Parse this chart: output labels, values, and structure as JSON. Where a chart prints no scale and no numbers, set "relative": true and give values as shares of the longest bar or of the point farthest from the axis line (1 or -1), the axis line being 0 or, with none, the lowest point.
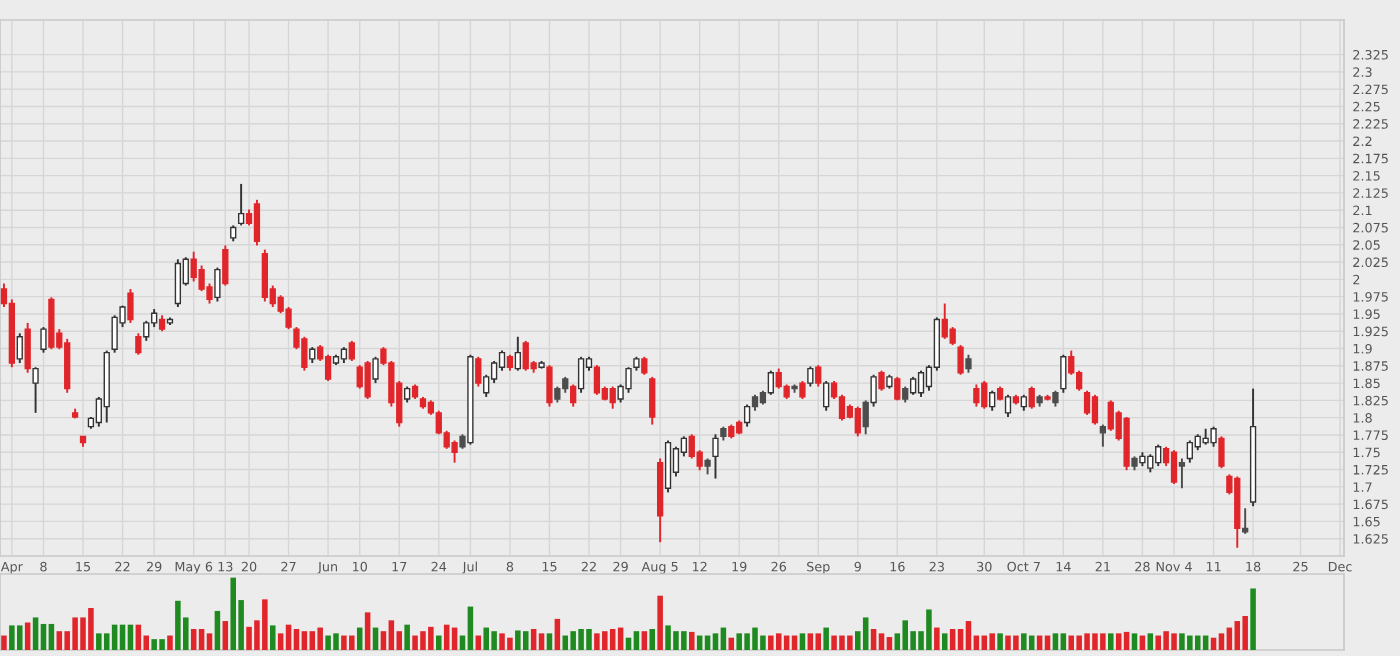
{
  "chart_data": [
    {
      "type": "candlestick",
      "grid": true,
      "categories": [
        null,
        "Apr",
        null,
        null,
        null,
        "8",
        null,
        null,
        null,
        null,
        "15",
        null,
        null,
        null,
        null,
        "22",
        null,
        null,
        null,
        "29",
        null,
        null,
        null,
        null,
        "May 6",
        null,
        null,
        null,
        "13",
        null,
        null,
        "20",
        null,
        null,
        null,
        null,
        "27",
        null,
        null,
        null,
        null,
        "Jun",
        null,
        null,
        null,
        "10",
        null,
        null,
        null,
        null,
        "17",
        null,
        null,
        null,
        null,
        "24",
        null,
        null,
        null,
        "Jul",
        null,
        null,
        null,
        null,
        "8",
        null,
        null,
        null,
        null,
        "15",
        null,
        null,
        null,
        null,
        "22",
        null,
        null,
        null,
        "29",
        null,
        null,
        null,
        null,
        "Aug 5",
        null,
        null,
        null,
        null,
        "12",
        null,
        null,
        null,
        null,
        "19",
        null,
        null,
        null,
        null,
        "26",
        null,
        null,
        null,
        null,
        "Sep",
        null,
        null,
        null,
        null,
        "9",
        null,
        null,
        null,
        null,
        "16",
        null,
        null,
        null,
        null,
        "23",
        null,
        null,
        null,
        null,
        null,
        "30",
        null,
        null,
        null,
        null,
        "Oct 7",
        null,
        null,
        null,
        null,
        "14",
        null,
        null,
        null,
        null,
        "21",
        null,
        null,
        null,
        null,
        "28",
        null,
        null,
        null,
        "Nov 4",
        null,
        null,
        null,
        null,
        "11",
        null,
        null,
        null,
        null,
        "18",
        null,
        null,
        null,
        null,
        null,
        "25",
        null,
        null,
        null,
        null,
        "Dec"
      ],
      "ohlc": [
        [
          1.986,
          1.994,
          1.96,
          1.965
        ],
        [
          1.965,
          1.971,
          1.873,
          1.879
        ],
        [
          1.885,
          1.922,
          1.879,
          1.917
        ],
        [
          1.928,
          1.937,
          1.865,
          1.871
        ],
        [
          1.85,
          1.873,
          1.807,
          1.871
        ],
        [
          1.899,
          1.931,
          1.894,
          1.928
        ],
        [
          1.971,
          1.974,
          1.899,
          1.902
        ],
        [
          1.922,
          1.928,
          1.899,
          1.902
        ],
        [
          1.908,
          1.914,
          1.836,
          1.842
        ],
        [
          1.807,
          1.813,
          1.799,
          1.801
        ],
        [
          1.773,
          1.773,
          1.758,
          1.764
        ],
        [
          1.787,
          1.801,
          1.784,
          1.799
        ],
        [
          1.793,
          1.83,
          1.787,
          1.827
        ],
        [
          1.816,
          1.897,
          1.793,
          1.894
        ],
        [
          1.899,
          1.948,
          1.894,
          1.945
        ],
        [
          1.937,
          1.962,
          1.931,
          1.96
        ],
        [
          1.98,
          1.986,
          1.937,
          1.942
        ],
        [
          1.917,
          1.922,
          1.891,
          1.894
        ],
        [
          1.917,
          1.94,
          1.911,
          1.937
        ],
        [
          1.937,
          1.957,
          1.931,
          1.951
        ],
        [
          1.942,
          1.948,
          1.925,
          1.928
        ],
        [
          1.937,
          1.945,
          1.934,
          1.942
        ],
        [
          1.965,
          2.029,
          1.96,
          2.023
        ],
        [
          1.994,
          2.032,
          1.991,
          2.029
        ],
        [
          2.029,
          2.04,
          1.997,
          2.003
        ],
        [
          2.014,
          2.02,
          1.983,
          1.986
        ],
        [
          1.989,
          1.994,
          1.965,
          1.971
        ],
        [
          1.974,
          2.017,
          1.968,
          2.014
        ],
        [
          2.043,
          2.049,
          1.991,
          1.994
        ],
        [
          2.06,
          2.078,
          2.055,
          2.075
        ],
        [
          2.081,
          2.138,
          2.078,
          2.095
        ],
        [
          2.095,
          2.101,
          2.078,
          2.081
        ],
        [
          2.109,
          2.115,
          2.049,
          2.055
        ],
        [
          2.037,
          2.043,
          1.968,
          1.974
        ],
        [
          1.986,
          1.991,
          1.96,
          1.965
        ],
        [
          1.974,
          1.977,
          1.951,
          1.954
        ],
        [
          1.957,
          1.96,
          1.928,
          1.931
        ],
        [
          1.928,
          1.931,
          1.899,
          1.902
        ],
        [
          1.914,
          1.917,
          1.868,
          1.873
        ],
        [
          1.885,
          1.902,
          1.879,
          1.899
        ],
        [
          1.902,
          1.905,
          1.882,
          1.885
        ],
        [
          1.888,
          1.891,
          1.853,
          1.856
        ],
        [
          1.879,
          1.891,
          1.876,
          1.888
        ],
        [
          1.885,
          1.902,
          1.879,
          1.899
        ],
        [
          1.908,
          1.911,
          1.882,
          1.885
        ],
        [
          1.873,
          1.876,
          1.842,
          1.845
        ],
        [
          1.879,
          1.882,
          1.827,
          1.83
        ],
        [
          1.856,
          1.888,
          1.85,
          1.885
        ],
        [
          1.899,
          1.902,
          1.876,
          1.879
        ],
        [
          1.879,
          1.882,
          1.816,
          1.822
        ],
        [
          1.85,
          1.853,
          1.787,
          1.793
        ],
        [
          1.827,
          1.845,
          1.822,
          1.842
        ],
        [
          1.845,
          1.848,
          1.827,
          1.83
        ],
        [
          1.827,
          1.83,
          1.813,
          1.816
        ],
        [
          1.822,
          1.825,
          1.804,
          1.807
        ],
        [
          1.807,
          1.81,
          1.776,
          1.778
        ],
        [
          1.778,
          1.781,
          1.755,
          1.758
        ],
        [
          1.764,
          1.767,
          1.735,
          1.75
        ],
        [
          1.758,
          1.776,
          1.755,
          1.773
        ],
        [
          1.764,
          1.891,
          1.761,
          1.888
        ],
        [
          1.885,
          1.888,
          1.845,
          1.85
        ],
        [
          1.836,
          1.862,
          1.83,
          1.859
        ],
        [
          1.856,
          1.882,
          1.85,
          1.879
        ],
        [
          1.873,
          1.897,
          1.868,
          1.894
        ],
        [
          1.888,
          1.891,
          1.868,
          1.873
        ],
        [
          1.871,
          1.917,
          1.868,
          1.894
        ],
        [
          1.908,
          1.911,
          1.868,
          1.871
        ],
        [
          1.879,
          1.882,
          1.865,
          1.871
        ],
        [
          1.873,
          1.882,
          1.871,
          1.879
        ],
        [
          1.873,
          1.876,
          1.816,
          1.822
        ],
        [
          1.827,
          1.845,
          1.822,
          1.842
        ],
        [
          1.842,
          1.859,
          1.836,
          1.856
        ],
        [
          1.845,
          1.848,
          1.816,
          1.822
        ],
        [
          1.842,
          1.888,
          1.836,
          1.885
        ],
        [
          1.873,
          1.888,
          1.868,
          1.885
        ],
        [
          1.873,
          1.876,
          1.833,
          1.836
        ],
        [
          1.842,
          1.845,
          1.825,
          1.827
        ],
        [
          1.842,
          1.845,
          1.813,
          1.822
        ],
        [
          1.827,
          1.848,
          1.822,
          1.845
        ],
        [
          1.842,
          1.873,
          1.836,
          1.871
        ],
        [
          1.873,
          1.888,
          1.868,
          1.885
        ],
        [
          1.885,
          1.888,
          1.862,
          1.865
        ],
        [
          1.856,
          1.859,
          1.79,
          1.801
        ],
        [
          1.735,
          1.741,
          1.62,
          1.658
        ],
        [
          1.698,
          1.767,
          1.692,
          1.764
        ],
        [
          1.721,
          1.758,
          1.715,
          1.755
        ],
        [
          1.75,
          1.773,
          1.744,
          1.77
        ],
        [
          1.773,
          1.776,
          1.741,
          1.744
        ],
        [
          1.75,
          1.753,
          1.724,
          1.73
        ],
        [
          1.73,
          1.741,
          1.718,
          1.738
        ],
        [
          1.744,
          1.776,
          1.712,
          1.77
        ],
        [
          1.773,
          1.787,
          1.767,
          1.784
        ],
        [
          1.787,
          1.79,
          1.77,
          1.773
        ],
        [
          1.793,
          1.796,
          1.776,
          1.778
        ],
        [
          1.793,
          1.819,
          1.787,
          1.816
        ],
        [
          1.816,
          1.833,
          1.81,
          1.83
        ],
        [
          1.822,
          1.839,
          1.819,
          1.836
        ],
        [
          1.836,
          1.868,
          1.833,
          1.865
        ],
        [
          1.865,
          1.871,
          1.842,
          1.845
        ],
        [
          1.845,
          1.848,
          1.827,
          1.83
        ],
        [
          1.842,
          1.848,
          1.836,
          1.845
        ],
        [
          1.85,
          1.853,
          1.827,
          1.83
        ],
        [
          1.85,
          1.874,
          1.845,
          1.871
        ],
        [
          1.873,
          1.876,
          1.845,
          1.85
        ],
        [
          1.816,
          1.853,
          1.81,
          1.85
        ],
        [
          1.85,
          1.853,
          1.827,
          1.83
        ],
        [
          1.83,
          1.833,
          1.796,
          1.799
        ],
        [
          1.816,
          1.819,
          1.799,
          1.801
        ],
        [
          1.813,
          1.816,
          1.773,
          1.778
        ],
        [
          1.787,
          1.825,
          1.776,
          1.822
        ],
        [
          1.822,
          1.862,
          1.816,
          1.859
        ],
        [
          1.865,
          1.868,
          1.839,
          1.842
        ],
        [
          1.845,
          1.862,
          1.842,
          1.859
        ],
        [
          1.856,
          1.859,
          1.825,
          1.827
        ],
        [
          1.827,
          1.845,
          1.822,
          1.842
        ],
        [
          1.836,
          1.859,
          1.833,
          1.856
        ],
        [
          1.836,
          1.868,
          1.83,
          1.865
        ],
        [
          1.845,
          1.876,
          1.839,
          1.873
        ],
        [
          1.873,
          1.945,
          1.868,
          1.942
        ],
        [
          1.942,
          1.965,
          1.914,
          1.917
        ],
        [
          1.928,
          1.931,
          1.905,
          1.908
        ],
        [
          1.902,
          1.905,
          1.862,
          1.865
        ],
        [
          1.871,
          1.891,
          1.865,
          1.885
        ],
        [
          1.842,
          1.848,
          1.816,
          1.822
        ],
        [
          1.85,
          1.853,
          1.813,
          1.816
        ],
        [
          1.816,
          1.839,
          1.81,
          1.836
        ],
        [
          1.842,
          1.845,
          1.825,
          1.827
        ],
        [
          1.807,
          1.833,
          1.801,
          1.83
        ],
        [
          1.83,
          1.833,
          1.819,
          1.822
        ],
        [
          1.816,
          1.833,
          1.81,
          1.83
        ],
        [
          1.842,
          1.845,
          1.813,
          1.816
        ],
        [
          1.822,
          1.833,
          1.816,
          1.83
        ],
        [
          1.83,
          1.833,
          1.825,
          1.827
        ],
        [
          1.822,
          1.839,
          1.816,
          1.836
        ],
        [
          1.842,
          1.891,
          1.836,
          1.888
        ],
        [
          1.888,
          1.897,
          1.862,
          1.865
        ],
        [
          1.865,
          1.868,
          1.839,
          1.842
        ],
        [
          1.836,
          1.839,
          1.804,
          1.807
        ],
        [
          1.83,
          1.833,
          1.79,
          1.793
        ],
        [
          1.778,
          1.79,
          1.758,
          1.787
        ],
        [
          1.822,
          1.825,
          1.781,
          1.784
        ],
        [
          1.807,
          1.81,
          1.767,
          1.77
        ],
        [
          1.799,
          1.801,
          1.724,
          1.73
        ],
        [
          1.73,
          1.744,
          1.724,
          1.741
        ],
        [
          1.735,
          1.75,
          1.73,
          1.744
        ],
        [
          1.727,
          1.747,
          1.721,
          1.744
        ],
        [
          1.735,
          1.761,
          1.73,
          1.758
        ],
        [
          1.755,
          1.758,
          1.73,
          1.735
        ],
        [
          1.75,
          1.753,
          1.704,
          1.707
        ],
        [
          1.73,
          1.741,
          1.698,
          1.735
        ],
        [
          1.741,
          1.767,
          1.735,
          1.764
        ],
        [
          1.758,
          1.776,
          1.753,
          1.773
        ],
        [
          1.764,
          1.784,
          1.761,
          1.77
        ],
        [
          1.764,
          1.787,
          1.758,
          1.784
        ],
        [
          1.77,
          1.773,
          1.727,
          1.73
        ],
        [
          1.715,
          1.718,
          1.689,
          1.692
        ],
        [
          1.712,
          1.715,
          1.612,
          1.64
        ],
        [
          1.635,
          1.669,
          1.632,
          1.64
        ],
        [
          1.678,
          1.842,
          1.672,
          1.787
        ],
        null,
        null,
        null,
        null,
        null,
        null,
        null,
        null,
        null,
        null,
        null
      ],
      "colors": [
        "#e0262b",
        "#e0262b",
        "#ffffff",
        "#e0262b",
        "#ffffff",
        "#ffffff",
        "#e0262b",
        "#e0262b",
        "#e0262b",
        "#e0262b",
        "#e0262b",
        "#ffffff",
        "#ffffff",
        "#ffffff",
        "#ffffff",
        "#ffffff",
        "#e0262b",
        "#e0262b",
        "#ffffff",
        "#ffffff",
        "#e0262b",
        "#ffffff",
        "#ffffff",
        "#ffffff",
        "#e0262b",
        "#e0262b",
        "#e0262b",
        "#ffffff",
        "#e0262b",
        "#ffffff",
        "#ffffff",
        "#e0262b",
        "#e0262b",
        "#e0262b",
        "#e0262b",
        "#e0262b",
        "#e0262b",
        "#e0262b",
        "#e0262b",
        "#ffffff",
        "#e0262b",
        "#e0262b",
        "#ffffff",
        "#ffffff",
        "#e0262b",
        "#e0262b",
        "#e0262b",
        "#ffffff",
        "#e0262b",
        "#e0262b",
        "#e0262b",
        "#ffffff",
        "#e0262b",
        "#e0262b",
        "#e0262b",
        "#e0262b",
        "#e0262b",
        "#e0262b",
        "#4d4d4d",
        "#ffffff",
        "#e0262b",
        "#ffffff",
        "#ffffff",
        "#ffffff",
        "#e0262b",
        "#ffffff",
        "#e0262b",
        "#e0262b",
        "#ffffff",
        "#e0262b",
        "#4d4d4d",
        "#4d4d4d",
        "#e0262b",
        "#ffffff",
        "#ffffff",
        "#e0262b",
        "#e0262b",
        "#e0262b",
        "#ffffff",
        "#ffffff",
        "#ffffff",
        "#e0262b",
        "#e0262b",
        "#e0262b",
        "#ffffff",
        "#ffffff",
        "#ffffff",
        "#e0262b",
        "#e0262b",
        "#4d4d4d",
        "#ffffff",
        "#4d4d4d",
        "#e0262b",
        "#e0262b",
        "#ffffff",
        "#4d4d4d",
        "#4d4d4d",
        "#ffffff",
        "#e0262b",
        "#e0262b",
        "#4d4d4d",
        "#e0262b",
        "#ffffff",
        "#e0262b",
        "#ffffff",
        "#e0262b",
        "#e0262b",
        "#e0262b",
        "#e0262b",
        "#4d4d4d",
        "#ffffff",
        "#e0262b",
        "#ffffff",
        "#e0262b",
        "#4d4d4d",
        "#ffffff",
        "#ffffff",
        "#ffffff",
        "#ffffff",
        "#e0262b",
        "#e0262b",
        "#e0262b",
        "#4d4d4d",
        "#e0262b",
        "#e0262b",
        "#ffffff",
        "#e0262b",
        "#ffffff",
        "#e0262b",
        "#ffffff",
        "#e0262b",
        "#4d4d4d",
        "#e0262b",
        "#4d4d4d",
        "#ffffff",
        "#e0262b",
        "#e0262b",
        "#e0262b",
        "#e0262b",
        "#4d4d4d",
        "#e0262b",
        "#e0262b",
        "#e0262b",
        "#4d4d4d",
        "#ffffff",
        "#ffffff",
        "#ffffff",
        "#e0262b",
        "#e0262b",
        "#4d4d4d",
        "#ffffff",
        "#ffffff",
        "#ffffff",
        "#ffffff",
        "#e0262b",
        "#e0262b",
        "#e0262b",
        "#4d4d4d",
        "#ffffff",
        null,
        null,
        null,
        null,
        null,
        null,
        null,
        null,
        null,
        null,
        null
      ],
      "ylim": [
        1.6,
        2.375
      ],
      "yticks": [
        1.625,
        1.65,
        1.675,
        1.7,
        1.725,
        1.75,
        1.775,
        1.8,
        1.825,
        1.85,
        1.875,
        1.9,
        1.925,
        1.95,
        1.975,
        2,
        2.025,
        2.05,
        2.075,
        2.1,
        2.125,
        2.15,
        2.175,
        2.2,
        2.225,
        2.25,
        2.275,
        2.3,
        2.325
      ]
    },
    {
      "type": "bar",
      "relative": true,
      "categories": [
        null,
        null,
        null,
        null,
        null,
        null,
        null,
        null,
        null,
        null,
        null,
        null,
        null,
        null,
        null,
        null,
        null,
        null,
        null,
        null,
        null,
        null,
        null,
        null,
        null,
        null,
        null,
        null,
        null,
        null,
        null,
        null,
        null,
        null,
        null,
        null,
        null,
        null,
        null,
        null,
        null,
        null,
        null,
        null,
        null,
        null,
        null,
        null,
        null,
        null,
        null,
        null,
        null,
        null,
        null,
        null,
        null,
        null,
        null,
        null,
        null,
        null,
        null,
        null,
        null,
        null,
        null,
        null,
        null,
        null,
        null,
        null,
        null,
        null,
        null,
        null,
        null,
        null,
        null,
        null,
        null,
        null,
        null,
        null,
        null,
        null,
        null,
        null,
        null,
        null,
        null,
        null,
        null,
        null,
        null,
        null,
        null,
        null,
        null,
        null,
        null,
        null,
        null,
        null,
        null,
        null,
        null,
        null,
        null,
        null,
        null,
        null,
        null,
        null,
        null,
        null,
        null,
        null,
        null,
        null,
        null,
        null,
        null,
        null,
        null,
        null,
        null,
        null,
        null,
        null,
        null,
        null,
        null,
        null,
        null,
        null,
        null,
        null,
        null,
        null,
        null,
        null,
        null,
        null,
        null,
        null,
        null,
        null,
        null,
        null,
        null,
        null,
        null,
        null,
        null,
        null,
        null,
        null,
        null,
        null,
        null,
        null,
        null,
        null,
        null,
        null,
        null,
        null,
        null,
        null
      ],
      "values": [
        0.2,
        0.34,
        0.34,
        0.38,
        0.45,
        0.36,
        0.36,
        0.26,
        0.26,
        0.45,
        0.45,
        0.58,
        0.23,
        0.23,
        0.35,
        0.35,
        0.35,
        0.35,
        0.2,
        0.15,
        0.15,
        0.2,
        0.68,
        0.45,
        0.29,
        0.29,
        0.23,
        0.54,
        0.4,
        1,
        0.69,
        0.32,
        0.41,
        0.7,
        0.34,
        0.23,
        0.35,
        0.29,
        0.26,
        0.26,
        0.31,
        0.2,
        0.23,
        0.2,
        0.2,
        0.31,
        0.52,
        0.31,
        0.26,
        0.41,
        0.26,
        0.35,
        0.2,
        0.26,
        0.32,
        0.2,
        0.35,
        0.31,
        0.2,
        0.6,
        0.2,
        0.31,
        0.26,
        0.23,
        0.17,
        0.27,
        0.26,
        0.29,
        0.23,
        0.23,
        0.43,
        0.2,
        0.26,
        0.29,
        0.29,
        0.23,
        0.26,
        0.29,
        0.31,
        0.17,
        0.26,
        0.26,
        0.29,
        0.75,
        0.34,
        0.26,
        0.26,
        0.25,
        0.2,
        0.2,
        0.23,
        0.31,
        0.17,
        0.23,
        0.23,
        0.31,
        0.2,
        0.2,
        0.23,
        0.2,
        0.2,
        0.23,
        0.23,
        0.23,
        0.31,
        0.2,
        0.2,
        0.2,
        0.26,
        0.45,
        0.29,
        0.23,
        0.18,
        0.23,
        0.41,
        0.26,
        0.26,
        0.56,
        0.31,
        0.23,
        0.29,
        0.29,
        0.4,
        0.2,
        0.2,
        0.23,
        0.23,
        0.2,
        0.2,
        0.23,
        0.2,
        0.2,
        0.2,
        0.23,
        0.23,
        0.2,
        0.2,
        0.23,
        0.23,
        0.23,
        0.23,
        0.23,
        0.25,
        0.23,
        0.2,
        0.23,
        0.2,
        0.26,
        0.23,
        0.23,
        0.2,
        0.2,
        0.2,
        0.17,
        0.23,
        0.31,
        0.4,
        0.47,
        0.85,
        null,
        null,
        null,
        null,
        null,
        null,
        null,
        null,
        null,
        null,
        null
      ],
      "colors": [
        "#e0262b",
        "#1f8a1f",
        "#1f8a1f",
        "#e0262b",
        "#1f8a1f",
        "#1f8a1f",
        "#1f8a1f",
        "#e0262b",
        "#e0262b",
        "#e0262b",
        "#e0262b",
        "#e0262b",
        "#1f8a1f",
        "#1f8a1f",
        "#1f8a1f",
        "#1f8a1f",
        "#1f8a1f",
        "#e0262b",
        "#e0262b",
        "#1f8a1f",
        "#1f8a1f",
        "#e0262b",
        "#1f8a1f",
        "#1f8a1f",
        "#e0262b",
        "#e0262b",
        "#e0262b",
        "#1f8a1f",
        "#e0262b",
        "#1f8a1f",
        "#1f8a1f",
        "#e0262b",
        "#e0262b",
        "#e0262b",
        "#1f8a1f",
        "#e0262b",
        "#e0262b",
        "#e0262b",
        "#e0262b",
        "#e0262b",
        "#e0262b",
        "#1f8a1f",
        "#1f8a1f",
        "#e0262b",
        "#e0262b",
        "#1f8a1f",
        "#e0262b",
        "#1f8a1f",
        "#e0262b",
        "#e0262b",
        "#e0262b",
        "#1f8a1f",
        "#e0262b",
        "#e0262b",
        "#e0262b",
        "#1f8a1f",
        "#e0262b",
        "#e0262b",
        "#1f8a1f",
        "#1f8a1f",
        "#e0262b",
        "#1f8a1f",
        "#1f8a1f",
        "#e0262b",
        "#e0262b",
        "#1f8a1f",
        "#1f8a1f",
        "#e0262b",
        "#e0262b",
        "#1f8a1f",
        "#e0262b",
        "#1f8a1f",
        "#1f8a1f",
        "#1f8a1f",
        "#1f8a1f",
        "#e0262b",
        "#e0262b",
        "#e0262b",
        "#e0262b",
        "#1f8a1f",
        "#1f8a1f",
        "#e0262b",
        "#1f8a1f",
        "#e0262b",
        "#1f8a1f",
        "#1f8a1f",
        "#1f8a1f",
        "#e0262b",
        "#1f8a1f",
        "#1f8a1f",
        "#1f8a1f",
        "#1f8a1f",
        "#e0262b",
        "#1f8a1f",
        "#1f8a1f",
        "#1f8a1f",
        "#1f8a1f",
        "#e0262b",
        "#e0262b",
        "#e0262b",
        "#e0262b",
        "#1f8a1f",
        "#e0262b",
        "#e0262b",
        "#1f8a1f",
        "#e0262b",
        "#e0262b",
        "#e0262b",
        "#1f8a1f",
        "#1f8a1f",
        "#e0262b",
        "#e0262b",
        "#e0262b",
        "#1f8a1f",
        "#1f8a1f",
        "#1f8a1f",
        "#1f8a1f",
        "#1f8a1f",
        "#e0262b",
        "#1f8a1f",
        "#e0262b",
        "#e0262b",
        "#e0262b",
        "#e0262b",
        "#e0262b",
        "#e0262b",
        "#1f8a1f",
        "#e0262b",
        "#e0262b",
        "#1f8a1f",
        "#1f8a1f",
        "#e0262b",
        "#e0262b",
        "#1f8a1f",
        "#1f8a1f",
        "#e0262b",
        "#e0262b",
        "#e0262b",
        "#e0262b",
        "#e0262b",
        "#1f8a1f",
        "#e0262b",
        "#e0262b",
        "#1f8a1f",
        "#e0262b",
        "#1f8a1f",
        "#e0262b",
        "#e0262b",
        "#e0262b",
        "#1f8a1f",
        "#1f8a1f",
        "#1f8a1f",
        "#1f8a1f",
        "#e0262b",
        "#e0262b",
        "#e0262b",
        "#e0262b",
        "#e0262b",
        "#1f8a1f",
        null,
        null,
        null,
        null,
        null,
        null,
        null,
        null,
        null,
        null,
        null
      ]
    }
  ]
}
